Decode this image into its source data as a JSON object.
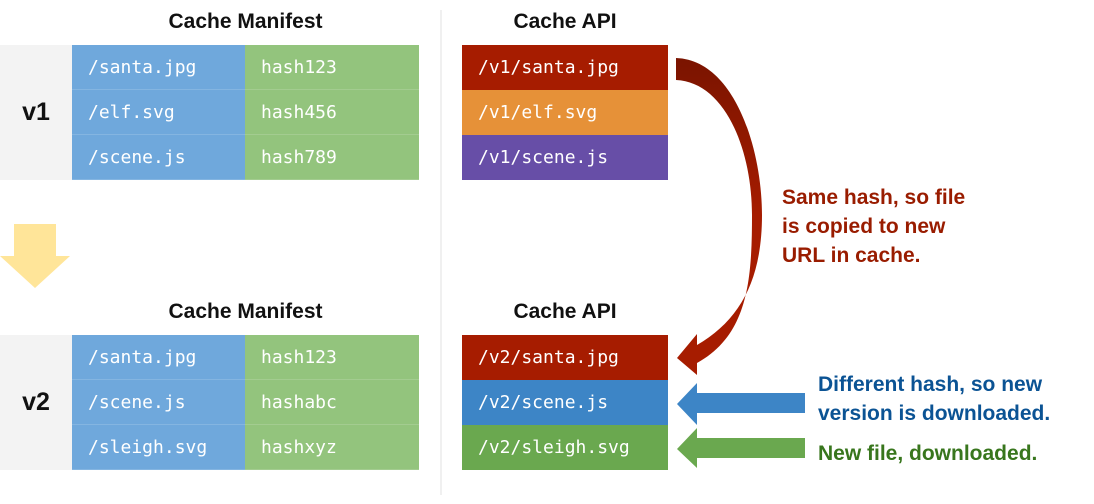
{
  "v1": {
    "label": "v1",
    "manifest_title": "Cache Manifest",
    "manifest": [
      {
        "path": "/santa.jpg",
        "hash": "hash123"
      },
      {
        "path": "/elf.svg",
        "hash": "hash456"
      },
      {
        "path": "/scene.js",
        "hash": "hash789"
      }
    ],
    "api_title": "Cache API",
    "api": [
      {
        "url": "/v1/santa.jpg",
        "color": "#a61c00"
      },
      {
        "url": "/v1/elf.svg",
        "color": "#e69138"
      },
      {
        "url": "/v1/scene.js",
        "color": "#674ea7"
      }
    ]
  },
  "v2": {
    "label": "v2",
    "manifest_title": "Cache Manifest",
    "manifest": [
      {
        "path": "/santa.jpg",
        "hash": "hash123"
      },
      {
        "path": "/scene.js",
        "hash": "hashabc"
      },
      {
        "path": "/sleigh.svg",
        "hash": "hashxyz"
      }
    ],
    "api_title": "Cache API",
    "api": [
      {
        "url": "/v2/santa.jpg",
        "color": "#a61c00"
      },
      {
        "url": "/v2/scene.js",
        "color": "#3d85c6"
      },
      {
        "url": "/v2/sleigh.svg",
        "color": "#6aa84f"
      }
    ]
  },
  "notes": {
    "copied": {
      "lines": [
        "Same hash, so file",
        "is copied to new",
        "URL in cache."
      ],
      "color": "#991c00"
    },
    "downloaded": {
      "lines": [
        "Different hash, so new",
        "version is downloaded."
      ],
      "color": "#0b5394"
    },
    "new_file": {
      "lines": [
        "New file, downloaded."
      ],
      "color": "#38761d"
    }
  }
}
